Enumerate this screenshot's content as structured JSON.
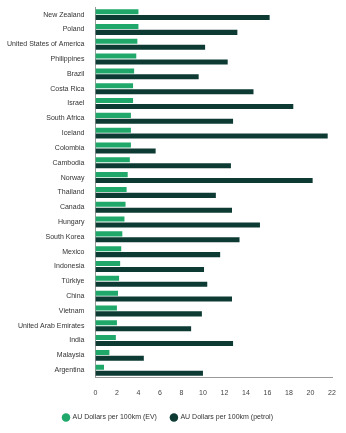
{
  "chart_data": {
    "type": "bar",
    "orientation": "horizontal",
    "categories": [
      "New Zealand",
      "Poland",
      "United States of America",
      "Philippines",
      "Brazil",
      "Costa Rica",
      "Israel",
      "South Africa",
      "Iceland",
      "Colombia",
      "Cambodia",
      "Norway",
      "Thailand",
      "Canada",
      "Hungary",
      "South Korea",
      "Mexico",
      "Indonesia",
      "Türkiye",
      "China",
      "Vietnam",
      "United Arab Emirates",
      "India",
      "Malaysia",
      "Argentina"
    ],
    "series": [
      {
        "name": "AU Dollars per 100km (EV)",
        "color": "#1fa86a",
        "values": [
          4.0,
          4.0,
          3.9,
          3.8,
          3.6,
          3.5,
          3.5,
          3.3,
          3.3,
          3.3,
          3.2,
          3.0,
          2.9,
          2.8,
          2.7,
          2.5,
          2.4,
          2.3,
          2.2,
          2.1,
          2.0,
          2.0,
          1.9,
          1.3,
          0.8
        ]
      },
      {
        "name": "AU Dollars per 100km (petrol)",
        "color": "#0d3b33",
        "values": [
          16.2,
          13.2,
          10.2,
          12.3,
          9.6,
          14.7,
          18.4,
          12.8,
          21.6,
          5.6,
          12.6,
          20.2,
          11.2,
          12.7,
          15.3,
          13.4,
          11.6,
          10.1,
          10.4,
          12.7,
          9.9,
          8.9,
          12.8,
          4.5,
          10.0
        ]
      }
    ],
    "xlim": [
      0,
      22
    ],
    "xticks": [
      0,
      2,
      4,
      6,
      8,
      10,
      12,
      14,
      16,
      18,
      20,
      22
    ],
    "grid": false,
    "legend": "bottom"
  }
}
